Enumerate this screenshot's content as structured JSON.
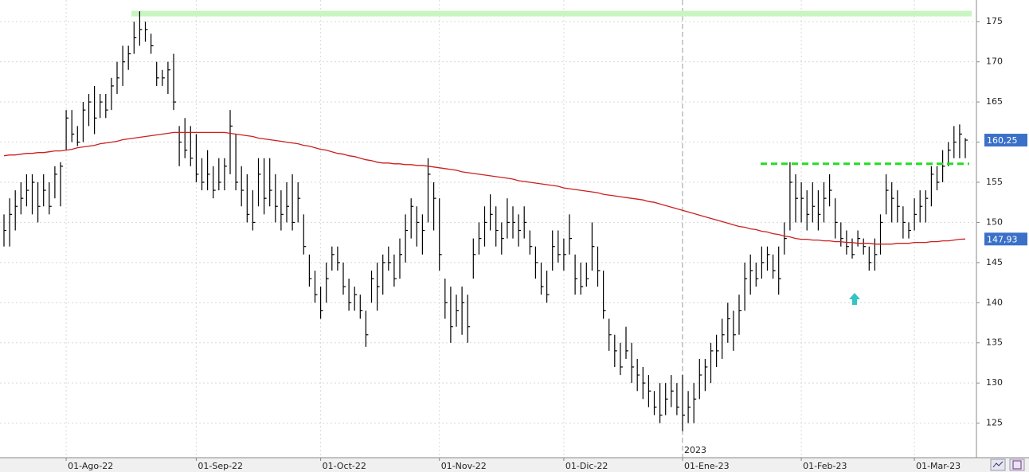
{
  "chart_data": {
    "type": "ohlc",
    "categories": [
      null,
      null,
      null,
      null,
      null,
      null,
      null,
      null,
      null,
      null,
      null,
      "01-Ago-22",
      null,
      null,
      null,
      null,
      null,
      null,
      null,
      null,
      null,
      null,
      null,
      null,
      null,
      null,
      null,
      null,
      null,
      null,
      null,
      null,
      null,
      null,
      "01-Sep-22",
      null,
      null,
      null,
      null,
      null,
      null,
      null,
      null,
      null,
      null,
      null,
      null,
      null,
      null,
      null,
      null,
      null,
      null,
      null,
      null,
      null,
      "01-Oct-22",
      null,
      null,
      null,
      null,
      null,
      null,
      null,
      null,
      null,
      null,
      null,
      null,
      null,
      null,
      null,
      null,
      null,
      null,
      null,
      null,
      "01-Nov-22",
      null,
      null,
      null,
      null,
      null,
      null,
      null,
      null,
      null,
      null,
      null,
      null,
      null,
      null,
      null,
      null,
      null,
      null,
      null,
      null,
      null,
      "01-Dic-22",
      null,
      null,
      null,
      null,
      null,
      null,
      null,
      null,
      null,
      null,
      null,
      null,
      null,
      null,
      null,
      null,
      null,
      null,
      null,
      null,
      "01-Ene-23",
      null,
      null,
      null,
      null,
      null,
      null,
      null,
      null,
      null,
      null,
      null,
      null,
      null,
      null,
      null,
      null,
      null,
      null,
      null,
      null,
      "01-Feb-23",
      null,
      null,
      null,
      null,
      null,
      null,
      null,
      null,
      null,
      null,
      null,
      null,
      null,
      null,
      null,
      null,
      null,
      null,
      null,
      "01-Mar-23",
      null,
      null,
      null,
      null,
      null,
      null,
      null,
      null,
      null
    ],
    "high": [
      151,
      153,
      154,
      155,
      156,
      156,
      155,
      156,
      155,
      157,
      157.5,
      164,
      164,
      162,
      165,
      166,
      167,
      166,
      166,
      168,
      170,
      172,
      172,
      175,
      176.3,
      175,
      173.5,
      170,
      169,
      170,
      171,
      162,
      163,
      162,
      161,
      158,
      159,
      157,
      158,
      158,
      164,
      161,
      157,
      156,
      154,
      158,
      158,
      158,
      156,
      154,
      155,
      156,
      155,
      151,
      146,
      144,
      142,
      145,
      147,
      147,
      145,
      143,
      142,
      141,
      139,
      144,
      145,
      146,
      147,
      146,
      148,
      151,
      153,
      152,
      151,
      158,
      155,
      153,
      143,
      142,
      141,
      142,
      141,
      148,
      150,
      152,
      153.5,
      152,
      150,
      153,
      152,
      151,
      152,
      149,
      147,
      145,
      144,
      149,
      149,
      148,
      151,
      146,
      145,
      145,
      150,
      147,
      144,
      138,
      136,
      135,
      137,
      135,
      133,
      132,
      131,
      129,
      130,
      130,
      131,
      130,
      131,
      129,
      130,
      133,
      133,
      135,
      136,
      138,
      140,
      139,
      141,
      145,
      146,
      145,
      147,
      147,
      146,
      147,
      150,
      157.5,
      156,
      155,
      154,
      155,
      154,
      155,
      156,
      153,
      150,
      149,
      148,
      149,
      148,
      147,
      148,
      151,
      156,
      155,
      154,
      152,
      150,
      153,
      154,
      154,
      157,
      157,
      159,
      160,
      162,
      162.2,
      160.5
    ],
    "low": [
      147,
      147,
      149,
      151,
      152,
      151,
      150,
      152,
      151,
      153,
      152,
      159,
      160,
      159.5,
      160,
      162,
      161,
      163,
      163,
      164,
      166,
      167,
      169,
      171,
      172,
      172.5,
      171,
      167,
      167,
      166,
      164,
      157,
      158,
      157,
      155,
      154,
      154,
      153,
      154,
      154,
      156,
      154,
      152,
      150,
      149,
      152,
      151,
      152,
      150,
      149,
      150,
      149,
      150,
      146,
      142,
      140,
      138,
      140,
      144,
      144,
      141,
      139,
      139,
      138,
      134.5,
      140,
      139,
      141,
      144,
      142,
      143,
      145,
      148,
      147,
      146,
      150,
      149,
      144,
      138,
      135,
      137,
      136,
      135,
      143,
      146,
      147,
      149,
      147,
      146,
      148,
      148,
      147,
      148,
      146,
      143,
      141,
      140,
      144,
      145,
      144,
      146,
      141,
      141,
      142,
      144,
      142,
      138,
      134,
      132,
      131,
      133,
      130,
      129,
      128,
      127,
      126,
      125,
      126,
      127,
      126,
      124,
      125,
      125,
      128,
      129,
      130,
      132,
      133,
      135,
      134,
      136,
      139,
      141,
      142,
      143,
      144,
      143,
      141,
      146,
      149,
      150,
      150,
      149,
      150,
      149,
      150,
      152,
      148,
      147,
      146,
      145.5,
      147,
      146,
      144,
      144,
      146,
      151,
      150,
      150,
      148,
      148,
      149,
      150,
      150,
      152,
      154,
      155,
      157,
      158,
      158,
      158
    ],
    "close": [
      149,
      151,
      152,
      153,
      154,
      155,
      152,
      154,
      152,
      156,
      157,
      163,
      161,
      160,
      164,
      165,
      163,
      165,
      164,
      167,
      168,
      170,
      171,
      173,
      174,
      174,
      172,
      168,
      168,
      169,
      165,
      160,
      159,
      158,
      156,
      155,
      156,
      154,
      155,
      157,
      162,
      155,
      154,
      151,
      150,
      156,
      153,
      154,
      152,
      151,
      152,
      150,
      153,
      147,
      143,
      141,
      139,
      143,
      146,
      145,
      142,
      140,
      141,
      139,
      136,
      143,
      142,
      145,
      145,
      143,
      146,
      149,
      152,
      150,
      149,
      156,
      153,
      146,
      140,
      137,
      139,
      140,
      137,
      146,
      148,
      150,
      151,
      149,
      148,
      150,
      150,
      149,
      150,
      147,
      145,
      142,
      141,
      147,
      146,
      146,
      148,
      143,
      142,
      143,
      147,
      144,
      139,
      136,
      134,
      132,
      134,
      132,
      131,
      130,
      129,
      127,
      126,
      128,
      129,
      127,
      126,
      127,
      128,
      131,
      132,
      134,
      134,
      136,
      138,
      136,
      139,
      143,
      144,
      143,
      145,
      146,
      144,
      143,
      148,
      155,
      153,
      153,
      151,
      152,
      151,
      153,
      154,
      150,
      148,
      147,
      146,
      148,
      147,
      145,
      146,
      150,
      154,
      153,
      152,
      150,
      149,
      151,
      152,
      153,
      156,
      155,
      157,
      159,
      160,
      161,
      160.25
    ],
    "ma": [
      158.3,
      158.4,
      158.4,
      158.5,
      158.6,
      158.6,
      158.7,
      158.7,
      158.8,
      158.9,
      158.9,
      159.0,
      159.1,
      159.3,
      159.4,
      159.5,
      159.6,
      159.8,
      159.9,
      160.0,
      160.1,
      160.3,
      160.4,
      160.5,
      160.6,
      160.7,
      160.8,
      160.9,
      161.0,
      161.1,
      161.2,
      161.2,
      161.2,
      161.2,
      161.2,
      161.2,
      161.2,
      161.2,
      161.2,
      161.2,
      161.1,
      161.0,
      160.9,
      160.8,
      160.7,
      160.5,
      160.4,
      160.3,
      160.2,
      160.1,
      160.0,
      159.9,
      159.8,
      159.6,
      159.5,
      159.3,
      159.1,
      159.0,
      158.8,
      158.6,
      158.5,
      158.3,
      158.2,
      158.0,
      157.8,
      157.7,
      157.5,
      157.4,
      157.4,
      157.3,
      157.3,
      157.2,
      157.2,
      157.1,
      157.1,
      157.0,
      156.9,
      156.8,
      156.7,
      156.6,
      156.5,
      156.3,
      156.2,
      156.1,
      156.0,
      155.9,
      155.8,
      155.7,
      155.6,
      155.5,
      155.4,
      155.2,
      155.1,
      155.0,
      154.9,
      154.8,
      154.7,
      154.6,
      154.5,
      154.3,
      154.2,
      154.1,
      154.0,
      153.9,
      153.8,
      153.7,
      153.5,
      153.4,
      153.3,
      153.2,
      153.1,
      153.0,
      152.9,
      152.8,
      152.6,
      152.5,
      152.3,
      152.1,
      151.9,
      151.7,
      151.5,
      151.3,
      151.1,
      150.9,
      150.7,
      150.5,
      150.3,
      150.1,
      149.9,
      149.7,
      149.5,
      149.4,
      149.2,
      149.1,
      148.9,
      148.8,
      148.6,
      148.5,
      148.3,
      148.2,
      148.0,
      147.9,
      147.9,
      147.8,
      147.8,
      147.7,
      147.7,
      147.6,
      147.6,
      147.5,
      147.5,
      147.4,
      147.4,
      147.4,
      147.3,
      147.3,
      147.3,
      147.3,
      147.4,
      147.4,
      147.4,
      147.5,
      147.5,
      147.5,
      147.6,
      147.6,
      147.7,
      147.7,
      147.8,
      147.9,
      147.93
    ],
    "bar_color": "#000000",
    "ma_color": "#cc1f1f",
    "resistance": 176,
    "resistance_color": "#c8f5c0",
    "neckline": 157.3,
    "neckline_color": "#22dd22",
    "last_price": {
      "value": 160.25,
      "label": "160,25"
    },
    "ma_last": {
      "value": 147.93,
      "label": "147,93"
    },
    "year_label": "2023",
    "ylim": [
      120.7,
      177.7
    ],
    "yticks": [
      125,
      130,
      135,
      140,
      145,
      150,
      155,
      160,
      165,
      170,
      175
    ],
    "grid": true
  }
}
